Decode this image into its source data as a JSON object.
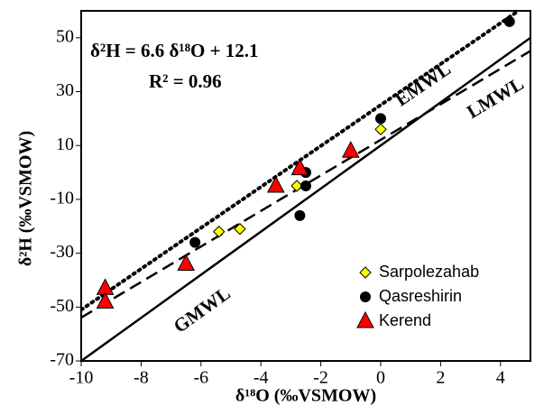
{
  "chart_data": {
    "type": "scatter",
    "annotations": [
      "δ²H = 6.6 δ¹⁸O + 12.1",
      "R² = 0.96"
    ],
    "x_label": "δ¹⁸O (‰VSMOW)",
    "y_label": "δ²H (‰VSMOW)",
    "xlim": [
      -10,
      5
    ],
    "xticks": [
      -10,
      -8,
      -6,
      -4,
      -2,
      0,
      2,
      4
    ],
    "ylim": [
      -70,
      60
    ],
    "yticks": [
      -70,
      -50,
      -30,
      -10,
      10,
      30,
      50
    ],
    "lines": [
      {
        "label": "EMWL",
        "style": "dotted",
        "x": [
          -10,
          4.6
        ],
        "values": [
          -51,
          60
        ]
      },
      {
        "label": "LMWL",
        "style": "dashed",
        "x": [
          -10,
          5
        ],
        "values": [
          -53.9,
          45.1
        ]
      },
      {
        "label": "GMWL",
        "style": "solid",
        "x": [
          -10,
          5
        ],
        "values": [
          -70,
          50
        ]
      }
    ],
    "series": [
      {
        "name": "Sarpolezahab",
        "color": "#ffff00",
        "marker": "diamond",
        "x": [
          0,
          -2.8,
          -4.7,
          -5.4
        ],
        "values": [
          16,
          -5,
          -21,
          -22
        ]
      },
      {
        "name": "Qasreshirin",
        "color": "#000000",
        "marker": "circle",
        "x": [
          4.3,
          0,
          -2.5,
          -2.5,
          -2.7,
          -6.2
        ],
        "values": [
          56,
          20,
          0,
          -5,
          -16,
          -26
        ]
      },
      {
        "name": "Kerend",
        "color": "#ff0000",
        "marker": "triangle",
        "x": [
          -1,
          -2.7,
          -3.5,
          -6.5,
          -9.2,
          -9.2
        ],
        "values": [
          8,
          1.5,
          -5,
          -34,
          -43,
          -48
        ]
      }
    ]
  }
}
